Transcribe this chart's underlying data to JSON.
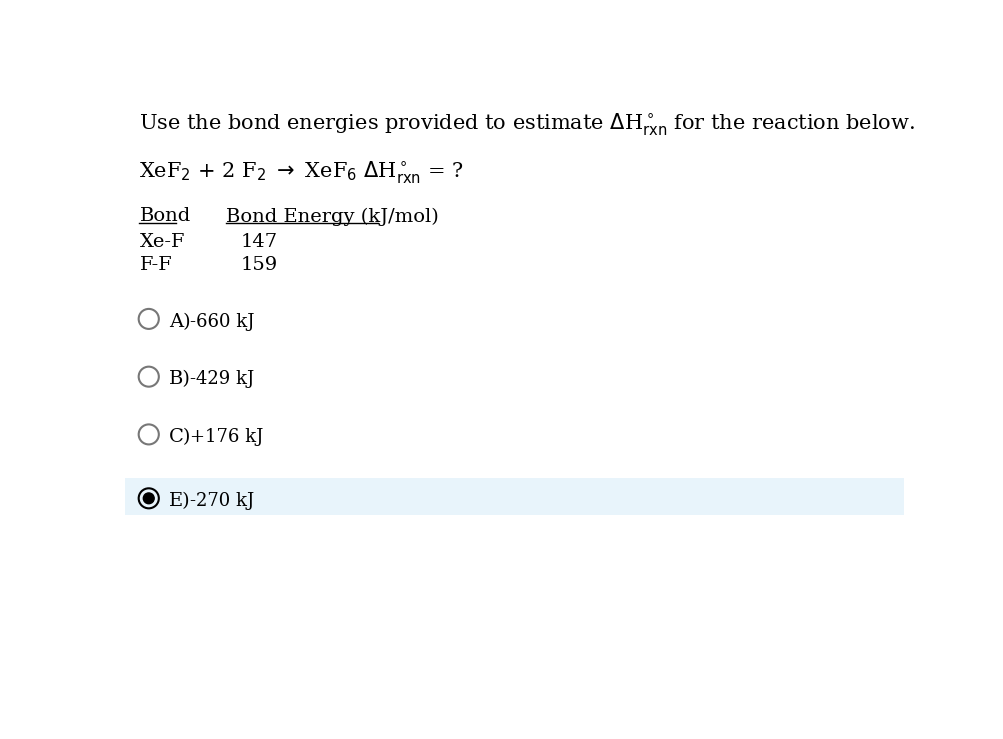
{
  "bg_color": "#ffffff",
  "highlight_color": "#e8f4fb",
  "options": [
    {
      "label": "A)",
      "text": "-660 kJ",
      "selected": false
    },
    {
      "label": "B)",
      "text": "-429 kJ",
      "selected": false
    },
    {
      "label": "C)",
      "text": "+176 kJ",
      "selected": false
    },
    {
      "label": "E)",
      "text": "-270 kJ",
      "selected": true
    }
  ],
  "font_size_title": 15,
  "font_size_body": 14,
  "font_size_option": 14
}
